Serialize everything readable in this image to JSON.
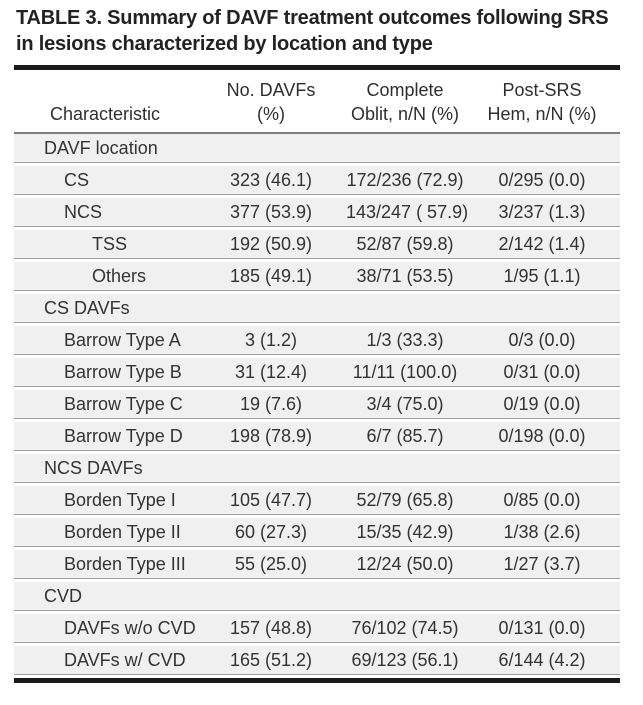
{
  "title_lines": [
    "TABLE 3. Summary of DAVF treatment outcomes following SRS",
    "in lesions characterized by location and type"
  ],
  "table": {
    "columns": [
      {
        "label_lines": [
          "",
          "Characteristic"
        ]
      },
      {
        "label_lines": [
          "No. DAVFs",
          "(%)"
        ]
      },
      {
        "label_lines": [
          "Complete",
          "Oblit, n/N (%)"
        ]
      },
      {
        "label_lines": [
          "Post-SRS",
          "Hem, n/N (%)"
        ]
      }
    ],
    "rows": [
      {
        "label": "DAVF location",
        "level": 0,
        "section": true,
        "values": [
          "",
          "",
          ""
        ]
      },
      {
        "label": "CS",
        "level": 1,
        "section": false,
        "values": [
          "323 (46.1)",
          "172/236 (72.9)",
          "0/295 (0.0)"
        ]
      },
      {
        "label": "NCS",
        "level": 1,
        "section": false,
        "values": [
          "377 (53.9)",
          "143/247 ( 57.9)",
          "3/237 (1.3)"
        ]
      },
      {
        "label": "TSS",
        "level": 2,
        "section": false,
        "values": [
          "192 (50.9)",
          "52/87 (59.8)",
          "2/142 (1.4)"
        ]
      },
      {
        "label": "Others",
        "level": 2,
        "section": false,
        "values": [
          "185 (49.1)",
          "38/71 (53.5)",
          "1/95 (1.1)"
        ]
      },
      {
        "label": "CS DAVFs",
        "level": 0,
        "section": true,
        "values": [
          "",
          "",
          ""
        ]
      },
      {
        "label": "Barrow Type A",
        "level": 1,
        "section": false,
        "values": [
          "3 (1.2)",
          "1/3 (33.3)",
          "0/3 (0.0)"
        ]
      },
      {
        "label": "Barrow Type B",
        "level": 1,
        "section": false,
        "values": [
          "31 (12.4)",
          "11/11 (100.0)",
          "0/31 (0.0)"
        ]
      },
      {
        "label": "Barrow Type C",
        "level": 1,
        "section": false,
        "values": [
          "19 (7.6)",
          "3/4 (75.0)",
          "0/19 (0.0)"
        ]
      },
      {
        "label": "Barrow Type D",
        "level": 1,
        "section": false,
        "values": [
          "198 (78.9)",
          "6/7 (85.7)",
          "0/198 (0.0)"
        ]
      },
      {
        "label": "NCS DAVFs",
        "level": 0,
        "section": true,
        "values": [
          "",
          "",
          ""
        ]
      },
      {
        "label": "Borden Type I",
        "level": 1,
        "section": false,
        "values": [
          "105 (47.7)",
          "52/79 (65.8)",
          "0/85 (0.0)"
        ]
      },
      {
        "label": "Borden Type II",
        "level": 1,
        "section": false,
        "values": [
          "60 (27.3)",
          "15/35 (42.9)",
          "1/38 (2.6)"
        ]
      },
      {
        "label": "Borden Type III",
        "level": 1,
        "section": false,
        "values": [
          "55 (25.0)",
          "12/24 (50.0)",
          "1/27 (3.7)"
        ]
      },
      {
        "label": "CVD",
        "level": 0,
        "section": true,
        "values": [
          "",
          "",
          ""
        ]
      },
      {
        "label": "DAVFs w/o CVD",
        "level": 1,
        "section": false,
        "values": [
          "157 (48.8)",
          "76/102 (74.5)",
          "0/131 (0.0)"
        ]
      },
      {
        "label": "DAVFs w/ CVD",
        "level": 1,
        "section": false,
        "values": [
          "165 (51.2)",
          "69/123 (56.1)",
          "6/144 (4.2)"
        ]
      }
    ]
  },
  "colors": {
    "heavy_rule": "#1a1a1a",
    "header_rule": "#7d7d7d",
    "row_separator": "#9e9e9e",
    "row_background": "#f0f0f0",
    "text": "#333333",
    "title_text": "#222222"
  }
}
